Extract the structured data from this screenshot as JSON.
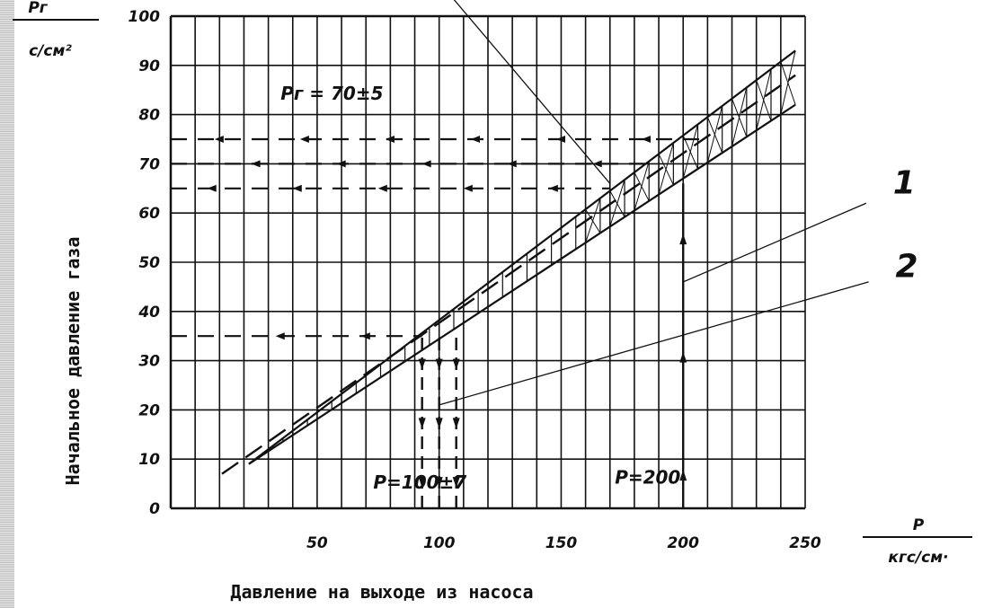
{
  "chart_data": {
    "type": "line",
    "title": "",
    "xlabel": "Давление на выходе из насоса",
    "ylabel": "Начальное давление газа",
    "x_unit": {
      "top": "P",
      "bottom": "кгс/см·"
    },
    "y_unit": {
      "top": "Pг",
      "bottom": "с/см²"
    },
    "xlim": [
      -10,
      250
    ],
    "ylim": [
      0,
      100
    ],
    "x_ticks": [
      50,
      100,
      150,
      200,
      250
    ],
    "x_tick_labels": [
      "50",
      "100",
      "150",
      "200",
      "250"
    ],
    "y_ticks": [
      0,
      10,
      20,
      30,
      40,
      50,
      60,
      70,
      80,
      90,
      100
    ],
    "y_tick_labels": [
      "0",
      "10",
      "20",
      "30",
      "40",
      "50",
      "60",
      "70",
      "80",
      "90",
      "100"
    ],
    "grid": true,
    "series": [
      {
        "name": "1",
        "x": [
          11,
          246
        ],
        "y": [
          7,
          88
        ]
      },
      {
        "name": "2",
        "x": [
          22,
          246
        ],
        "y": [
          9,
          93
        ]
      },
      {
        "name": "",
        "x": [
          22,
          246
        ],
        "y": [
          9,
          82
        ]
      }
    ],
    "annotations": [
      {
        "text": "Pг = 70±5",
        "x": 35,
        "y": 83
      },
      {
        "text": "P=100±7",
        "x": 73,
        "y": 4
      },
      {
        "text": "P=200",
        "x": 172,
        "y": 5
      },
      {
        "text": "1",
        "x": 286,
        "y": 64
      },
      {
        "text": "2",
        "x": 287,
        "y": 47
      }
    ],
    "reference_lines": [
      {
        "orientation": "horizontal",
        "y": 75,
        "x_from": -10,
        "x_to": 208
      },
      {
        "orientation": "horizontal",
        "y": 70,
        "x_from": -10,
        "x_to": 188
      },
      {
        "orientation": "horizontal",
        "y": 65,
        "x_from": -10,
        "x_to": 170
      },
      {
        "orientation": "horizontal",
        "y": 35,
        "x_from": -10,
        "x_to": 93
      },
      {
        "orientation": "vertical",
        "x": 93,
        "y_from": 0,
        "y_to": 35
      },
      {
        "orientation": "vertical",
        "x": 100,
        "y_from": 0,
        "y_to": 35
      },
      {
        "orientation": "vertical",
        "x": 107,
        "y_from": 0,
        "y_to": 36
      },
      {
        "orientation": "vertical",
        "x": 200,
        "y_from": 0,
        "y_to": 66
      }
    ],
    "leader_lines": [
      {
        "label": "1",
        "from": [
          200,
          46
        ],
        "to": [
          275,
          62
        ]
      },
      {
        "label": "2",
        "from": [
          100,
          21
        ],
        "to": [
          276,
          46
        ]
      },
      {
        "label": "",
        "from": [
          170,
          66
        ],
        "to": [
          105,
          104
        ]
      }
    ]
  },
  "colors": {
    "ink": "#111111",
    "paper": "#ffffff"
  }
}
